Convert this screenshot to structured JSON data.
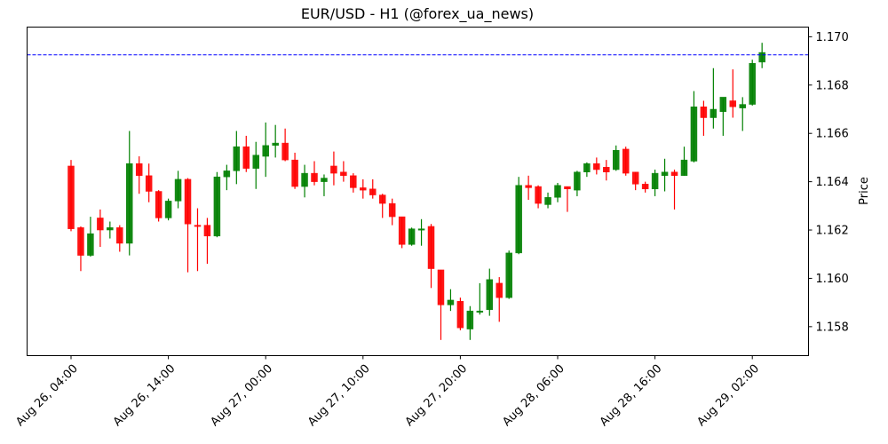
{
  "chart_data": {
    "type": "candlestick",
    "title": "EUR/USD - H1 (@forex_ua_news)",
    "xlabel": "",
    "ylabel": "Price",
    "ylim": [
      1.1568,
      1.1704
    ],
    "y_ticks": [
      "1.158",
      "1.160",
      "1.162",
      "1.164",
      "1.166",
      "1.168",
      "1.170"
    ],
    "x_ticks": [
      "Aug 26, 04:00",
      "Aug 26, 14:00",
      "Aug 27, 00:00",
      "Aug 27, 10:00",
      "Aug 27, 20:00",
      "Aug 28, 06:00",
      "Aug 28, 16:00",
      "Aug 29, 02:00"
    ],
    "x_tick_indices": [
      0,
      10,
      20,
      30,
      40,
      50,
      60,
      70
    ],
    "grid": false,
    "legend": null,
    "hline": {
      "value": 1.16925,
      "color": "#0000ff",
      "style": "dashed"
    },
    "colors": {
      "up": "#008000",
      "down": "#ff0000"
    },
    "candles": [
      {
        "t": "Aug 26, 04:00",
        "o": 1.16465,
        "h": 1.1649,
        "l": 1.16195,
        "c": 1.16205
      },
      {
        "t": "Aug 26, 05:00",
        "o": 1.1621,
        "h": 1.16215,
        "l": 1.1603,
        "c": 1.16095
      },
      {
        "t": "Aug 26, 06:00",
        "o": 1.16095,
        "h": 1.16255,
        "l": 1.1609,
        "c": 1.16185
      },
      {
        "t": "Aug 26, 07:00",
        "o": 1.1625,
        "h": 1.16285,
        "l": 1.1613,
        "c": 1.162
      },
      {
        "t": "Aug 26, 08:00",
        "o": 1.162,
        "h": 1.16235,
        "l": 1.16165,
        "c": 1.1621
      },
      {
        "t": "Aug 26, 09:00",
        "o": 1.1621,
        "h": 1.1622,
        "l": 1.1611,
        "c": 1.16145
      },
      {
        "t": "Aug 26, 10:00",
        "o": 1.16145,
        "h": 1.1661,
        "l": 1.16095,
        "c": 1.16475
      },
      {
        "t": "Aug 26, 11:00",
        "o": 1.16475,
        "h": 1.16505,
        "l": 1.1635,
        "c": 1.16425
      },
      {
        "t": "Aug 26, 12:00",
        "o": 1.16425,
        "h": 1.16475,
        "l": 1.16315,
        "c": 1.1636
      },
      {
        "t": "Aug 26, 13:00",
        "o": 1.1636,
        "h": 1.16365,
        "l": 1.16235,
        "c": 1.1625
      },
      {
        "t": "Aug 26, 14:00",
        "o": 1.1625,
        "h": 1.1633,
        "l": 1.1624,
        "c": 1.1632
      },
      {
        "t": "Aug 26, 15:00",
        "o": 1.1632,
        "h": 1.16445,
        "l": 1.1629,
        "c": 1.1641
      },
      {
        "t": "Aug 26, 16:00",
        "o": 1.1641,
        "h": 1.16415,
        "l": 1.16025,
        "c": 1.16225
      },
      {
        "t": "Aug 26, 17:00",
        "o": 1.1622,
        "h": 1.1629,
        "l": 1.1603,
        "c": 1.16215
      },
      {
        "t": "Aug 26, 18:00",
        "o": 1.1622,
        "h": 1.1625,
        "l": 1.1606,
        "c": 1.16175
      },
      {
        "t": "Aug 26, 19:00",
        "o": 1.16175,
        "h": 1.1644,
        "l": 1.1617,
        "c": 1.1642
      },
      {
        "t": "Aug 26, 20:00",
        "o": 1.1642,
        "h": 1.1647,
        "l": 1.16365,
        "c": 1.16445
      },
      {
        "t": "Aug 26, 21:00",
        "o": 1.16445,
        "h": 1.1661,
        "l": 1.1639,
        "c": 1.16545
      },
      {
        "t": "Aug 26, 22:00",
        "o": 1.16545,
        "h": 1.1659,
        "l": 1.1644,
        "c": 1.16455
      },
      {
        "t": "Aug 26, 23:00",
        "o": 1.16455,
        "h": 1.16565,
        "l": 1.1637,
        "c": 1.1651
      },
      {
        "t": "Aug 27, 00:00",
        "o": 1.16505,
        "h": 1.16645,
        "l": 1.1642,
        "c": 1.1655
      },
      {
        "t": "Aug 27, 01:00",
        "o": 1.1655,
        "h": 1.16635,
        "l": 1.165,
        "c": 1.1656
      },
      {
        "t": "Aug 27, 02:00",
        "o": 1.1656,
        "h": 1.1662,
        "l": 1.16485,
        "c": 1.1649
      },
      {
        "t": "Aug 27, 03:00",
        "o": 1.1649,
        "h": 1.1652,
        "l": 1.1637,
        "c": 1.1638
      },
      {
        "t": "Aug 27, 04:00",
        "o": 1.1638,
        "h": 1.1647,
        "l": 1.16335,
        "c": 1.16435
      },
      {
        "t": "Aug 27, 05:00",
        "o": 1.16435,
        "h": 1.16485,
        "l": 1.16385,
        "c": 1.164
      },
      {
        "t": "Aug 27, 06:00",
        "o": 1.164,
        "h": 1.1643,
        "l": 1.1634,
        "c": 1.16415
      },
      {
        "t": "Aug 27, 07:00",
        "o": 1.16465,
        "h": 1.16525,
        "l": 1.16385,
        "c": 1.16435
      },
      {
        "t": "Aug 27, 08:00",
        "o": 1.1644,
        "h": 1.16485,
        "l": 1.164,
        "c": 1.16425
      },
      {
        "t": "Aug 27, 09:00",
        "o": 1.16425,
        "h": 1.16435,
        "l": 1.16355,
        "c": 1.16375
      },
      {
        "t": "Aug 27, 10:00",
        "o": 1.16375,
        "h": 1.1641,
        "l": 1.1633,
        "c": 1.16365
      },
      {
        "t": "Aug 27, 11:00",
        "o": 1.1637,
        "h": 1.1641,
        "l": 1.1633,
        "c": 1.16345
      },
      {
        "t": "Aug 27, 12:00",
        "o": 1.16345,
        "h": 1.1635,
        "l": 1.1625,
        "c": 1.1631
      },
      {
        "t": "Aug 27, 13:00",
        "o": 1.1631,
        "h": 1.1633,
        "l": 1.1622,
        "c": 1.16255
      },
      {
        "t": "Aug 27, 14:00",
        "o": 1.16255,
        "h": 1.16255,
        "l": 1.16125,
        "c": 1.1614
      },
      {
        "t": "Aug 27, 15:00",
        "o": 1.1614,
        "h": 1.1621,
        "l": 1.16135,
        "c": 1.16205
      },
      {
        "t": "Aug 27, 16:00",
        "o": 1.16205,
        "h": 1.16245,
        "l": 1.16135,
        "c": 1.16205
      },
      {
        "t": "Aug 27, 17:00",
        "o": 1.16215,
        "h": 1.16225,
        "l": 1.1596,
        "c": 1.1604
      },
      {
        "t": "Aug 27, 18:00",
        "o": 1.16035,
        "h": 1.16035,
        "l": 1.15745,
        "c": 1.1589
      },
      {
        "t": "Aug 27, 19:00",
        "o": 1.1589,
        "h": 1.15955,
        "l": 1.15865,
        "c": 1.1591
      },
      {
        "t": "Aug 27, 20:00",
        "o": 1.15905,
        "h": 1.1592,
        "l": 1.15785,
        "c": 1.15795
      },
      {
        "t": "Aug 27, 21:00",
        "o": 1.1579,
        "h": 1.15885,
        "l": 1.15745,
        "c": 1.15865
      },
      {
        "t": "Aug 27, 22:00",
        "o": 1.15865,
        "h": 1.1598,
        "l": 1.1585,
        "c": 1.15865
      },
      {
        "t": "Aug 27, 23:00",
        "o": 1.1587,
        "h": 1.1604,
        "l": 1.15845,
        "c": 1.15995
      },
      {
        "t": "Aug 28, 00:00",
        "o": 1.1598,
        "h": 1.16005,
        "l": 1.1582,
        "c": 1.1592
      },
      {
        "t": "Aug 28, 01:00",
        "o": 1.1592,
        "h": 1.16115,
        "l": 1.15915,
        "c": 1.16105
      },
      {
        "t": "Aug 28, 02:00",
        "o": 1.16105,
        "h": 1.1642,
        "l": 1.161,
        "c": 1.16385
      },
      {
        "t": "Aug 28, 03:00",
        "o": 1.16385,
        "h": 1.16425,
        "l": 1.16325,
        "c": 1.16375
      },
      {
        "t": "Aug 28, 04:00",
        "o": 1.1638,
        "h": 1.16385,
        "l": 1.1629,
        "c": 1.1631
      },
      {
        "t": "Aug 28, 05:00",
        "o": 1.16305,
        "h": 1.16355,
        "l": 1.1629,
        "c": 1.16335
      },
      {
        "t": "Aug 28, 06:00",
        "o": 1.16335,
        "h": 1.16395,
        "l": 1.16315,
        "c": 1.16385
      },
      {
        "t": "Aug 28, 07:00",
        "o": 1.1638,
        "h": 1.1638,
        "l": 1.16275,
        "c": 1.1637
      },
      {
        "t": "Aug 28, 08:00",
        "o": 1.16365,
        "h": 1.16445,
        "l": 1.1634,
        "c": 1.1644
      },
      {
        "t": "Aug 28, 09:00",
        "o": 1.1644,
        "h": 1.1648,
        "l": 1.1642,
        "c": 1.16475
      },
      {
        "t": "Aug 28, 10:00",
        "o": 1.16475,
        "h": 1.165,
        "l": 1.1643,
        "c": 1.1645
      },
      {
        "t": "Aug 28, 11:00",
        "o": 1.1646,
        "h": 1.1649,
        "l": 1.16405,
        "c": 1.1644
      },
      {
        "t": "Aug 28, 12:00",
        "o": 1.1645,
        "h": 1.1655,
        "l": 1.16445,
        "c": 1.1653
      },
      {
        "t": "Aug 28, 13:00",
        "o": 1.16535,
        "h": 1.16545,
        "l": 1.16425,
        "c": 1.16435
      },
      {
        "t": "Aug 28, 14:00",
        "o": 1.1644,
        "h": 1.1644,
        "l": 1.16365,
        "c": 1.1639
      },
      {
        "t": "Aug 28, 15:00",
        "o": 1.1639,
        "h": 1.164,
        "l": 1.16355,
        "c": 1.1637
      },
      {
        "t": "Aug 28, 16:00",
        "o": 1.1637,
        "h": 1.1645,
        "l": 1.1634,
        "c": 1.16435
      },
      {
        "t": "Aug 28, 17:00",
        "o": 1.16425,
        "h": 1.16495,
        "l": 1.1636,
        "c": 1.1644
      },
      {
        "t": "Aug 28, 18:00",
        "o": 1.1644,
        "h": 1.1645,
        "l": 1.16285,
        "c": 1.16425
      },
      {
        "t": "Aug 28, 19:00",
        "o": 1.16425,
        "h": 1.16545,
        "l": 1.16425,
        "c": 1.1649
      },
      {
        "t": "Aug 28, 20:00",
        "o": 1.16485,
        "h": 1.16775,
        "l": 1.1648,
        "c": 1.1671
      },
      {
        "t": "Aug 28, 21:00",
        "o": 1.1671,
        "h": 1.16735,
        "l": 1.1659,
        "c": 1.16665
      },
      {
        "t": "Aug 28, 22:00",
        "o": 1.16665,
        "h": 1.1687,
        "l": 1.1662,
        "c": 1.167
      },
      {
        "t": "Aug 28, 23:00",
        "o": 1.1669,
        "h": 1.16745,
        "l": 1.1659,
        "c": 1.1675
      },
      {
        "t": "Aug 29, 00:00",
        "o": 1.16735,
        "h": 1.16865,
        "l": 1.16665,
        "c": 1.1671
      },
      {
        "t": "Aug 29, 01:00",
        "o": 1.16705,
        "h": 1.1675,
        "l": 1.1661,
        "c": 1.1672
      },
      {
        "t": "Aug 29, 02:00",
        "o": 1.1672,
        "h": 1.16905,
        "l": 1.16715,
        "c": 1.1689
      },
      {
        "t": "Aug 29, 03:00",
        "o": 1.16895,
        "h": 1.16975,
        "l": 1.1687,
        "c": 1.16935
      }
    ]
  }
}
